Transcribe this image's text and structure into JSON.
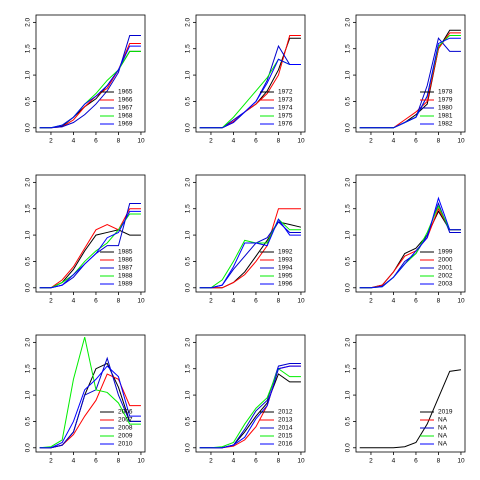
{
  "chart_data": [
    {
      "type": "line",
      "x": [
        1,
        2,
        3,
        4,
        5,
        6,
        7,
        8,
        9,
        10
      ],
      "xlim": [
        0.67,
        10.36
      ],
      "ylim": [
        -0.08,
        2.14
      ],
      "xticks": [
        2,
        4,
        6,
        8,
        10
      ],
      "yticks": [
        {
          "value": 0,
          "label": "0.0"
        },
        {
          "value": 0.5,
          "label": "0.5"
        },
        {
          "value": 1,
          "label": "1.0"
        },
        {
          "value": 1.5,
          "label": "1.5"
        },
        {
          "value": 2,
          "label": "2.0"
        }
      ],
      "legend": "bottom-right",
      "series": [
        {
          "name": "1965",
          "color": "#000000",
          "values": [
            0,
            0,
            0.03,
            0.2,
            0.4,
            0.55,
            0.8,
            1.1,
            1.45,
            1.45
          ]
        },
        {
          "name": "1966",
          "color": "#ff0000",
          "values": [
            0,
            0,
            0.02,
            0.15,
            0.4,
            0.6,
            0.75,
            1.1,
            1.6,
            1.6
          ]
        },
        {
          "name": "1967",
          "color": "#0000cd",
          "values": [
            0,
            0,
            0.02,
            0.1,
            0.25,
            0.45,
            0.7,
            1.05,
            1.75,
            1.75
          ]
        },
        {
          "name": "1968",
          "color": "#00ee00",
          "values": [
            0,
            0,
            0.05,
            0.2,
            0.45,
            0.65,
            0.9,
            1.1,
            1.45,
            1.45
          ]
        },
        {
          "name": "1969",
          "color": "#0000ff",
          "values": [
            0,
            0,
            0.05,
            0.2,
            0.45,
            0.6,
            0.8,
            1.1,
            1.55,
            1.55
          ]
        }
      ]
    },
    {
      "type": "line",
      "x": [
        1,
        2,
        3,
        4,
        5,
        6,
        7,
        8,
        9,
        10
      ],
      "xlim": [
        0.67,
        10.36
      ],
      "ylim": [
        -0.08,
        2.14
      ],
      "xticks": [
        2,
        4,
        6,
        8,
        10
      ],
      "yticks": [
        {
          "value": 0,
          "label": "0.0"
        },
        {
          "value": 0.5,
          "label": "0.5"
        },
        {
          "value": 1,
          "label": "1.0"
        },
        {
          "value": 1.5,
          "label": "1.5"
        },
        {
          "value": 2,
          "label": "2.0"
        }
      ],
      "legend": "bottom-right",
      "series": [
        {
          "name": "1972",
          "color": "#000000",
          "values": [
            0,
            0,
            0,
            0.1,
            0.3,
            0.45,
            0.7,
            1.1,
            1.7,
            1.7
          ]
        },
        {
          "name": "1973",
          "color": "#ff0000",
          "values": [
            0,
            0,
            0,
            0.12,
            0.3,
            0.45,
            0.65,
            1.0,
            1.75,
            1.75
          ]
        },
        {
          "name": "1974",
          "color": "#0000cd",
          "values": [
            0,
            0,
            0,
            0.15,
            0.3,
            0.5,
            0.9,
            1.55,
            1.2,
            1.2
          ]
        },
        {
          "name": "1975",
          "color": "#00ee00",
          "values": [
            0,
            0,
            0,
            0.2,
            0.45,
            0.7,
            0.95,
            1.3,
            1.2,
            1.2
          ]
        },
        {
          "name": "1976",
          "color": "#0000ff",
          "values": [
            0,
            0,
            0,
            0.1,
            0.3,
            0.5,
            0.85,
            1.3,
            1.2,
            1.2
          ]
        }
      ]
    },
    {
      "type": "line",
      "x": [
        1,
        2,
        3,
        4,
        5,
        6,
        7,
        8,
        9,
        10
      ],
      "xlim": [
        0.67,
        10.36
      ],
      "ylim": [
        -0.08,
        2.14
      ],
      "xticks": [
        2,
        4,
        6,
        8,
        10
      ],
      "yticks": [
        {
          "value": 0,
          "label": "0.0"
        },
        {
          "value": 0.5,
          "label": "0.5"
        },
        {
          "value": 1,
          "label": "1.0"
        },
        {
          "value": 1.5,
          "label": "1.5"
        },
        {
          "value": 2,
          "label": "2.0"
        }
      ],
      "legend": "bottom-right",
      "series": [
        {
          "name": "1978",
          "color": "#000000",
          "values": [
            0,
            0,
            0,
            0,
            0.1,
            0.25,
            0.45,
            1.5,
            1.85,
            1.85
          ]
        },
        {
          "name": "1979",
          "color": "#ff0000",
          "values": [
            0,
            0,
            0,
            0,
            0.15,
            0.3,
            0.5,
            1.5,
            1.8,
            1.8
          ]
        },
        {
          "name": "1980",
          "color": "#0000cd",
          "values": [
            0,
            0,
            0,
            0,
            0.1,
            0.2,
            0.8,
            1.7,
            1.45,
            1.45
          ]
        },
        {
          "name": "1981",
          "color": "#00ee00",
          "values": [
            0,
            0,
            0,
            0,
            0.1,
            0.2,
            0.6,
            1.55,
            1.75,
            1.75
          ]
        },
        {
          "name": "1982",
          "color": "#0000ff",
          "values": [
            0,
            0,
            0,
            0,
            0.1,
            0.2,
            0.6,
            1.6,
            1.7,
            1.7
          ]
        }
      ]
    },
    {
      "type": "line",
      "x": [
        1,
        2,
        3,
        4,
        5,
        6,
        7,
        8,
        9,
        10
      ],
      "xlim": [
        0.67,
        10.36
      ],
      "ylim": [
        -0.08,
        2.14
      ],
      "xticks": [
        2,
        4,
        6,
        8,
        10
      ],
      "yticks": [
        {
          "value": 0,
          "label": "0.0"
        },
        {
          "value": 0.5,
          "label": "0.5"
        },
        {
          "value": 1,
          "label": "1.0"
        },
        {
          "value": 1.5,
          "label": "1.5"
        },
        {
          "value": 2,
          "label": "2.0"
        }
      ],
      "legend": "bottom-right",
      "series": [
        {
          "name": "1985",
          "color": "#000000",
          "values": [
            0,
            0,
            0.1,
            0.35,
            0.7,
            1.0,
            1.05,
            1.1,
            1.0,
            1.0
          ]
        },
        {
          "name": "1986",
          "color": "#ff0000",
          "values": [
            0,
            0,
            0.15,
            0.4,
            0.75,
            1.1,
            1.2,
            1.1,
            1.5,
            1.5
          ]
        },
        {
          "name": "1987",
          "color": "#0000cd",
          "values": [
            0,
            0,
            0.05,
            0.2,
            0.45,
            0.65,
            0.8,
            0.8,
            1.6,
            1.6
          ]
        },
        {
          "name": "1988",
          "color": "#00ee00",
          "values": [
            0,
            0,
            0.1,
            0.25,
            0.5,
            0.7,
            0.85,
            1.1,
            1.4,
            1.4
          ]
        },
        {
          "name": "1989",
          "color": "#0000ff",
          "values": [
            0,
            0,
            0.05,
            0.25,
            0.45,
            0.65,
            0.95,
            1.05,
            1.45,
            1.45
          ]
        }
      ]
    },
    {
      "type": "line",
      "x": [
        1,
        2,
        3,
        4,
        5,
        6,
        7,
        8,
        9,
        10
      ],
      "xlim": [
        0.67,
        10.36
      ],
      "ylim": [
        -0.08,
        2.14
      ],
      "xticks": [
        2,
        4,
        6,
        8,
        10
      ],
      "yticks": [
        {
          "value": 0,
          "label": "0.0"
        },
        {
          "value": 0.5,
          "label": "0.5"
        },
        {
          "value": 1,
          "label": "1.0"
        },
        {
          "value": 1.5,
          "label": "1.5"
        },
        {
          "value": 2,
          "label": "2.0"
        }
      ],
      "legend": "bottom-right",
      "series": [
        {
          "name": "1992",
          "color": "#000000",
          "values": [
            0,
            0,
            0,
            0.1,
            0.3,
            0.6,
            0.9,
            1.25,
            1.2,
            1.15
          ]
        },
        {
          "name": "1993",
          "color": "#ff0000",
          "values": [
            0,
            0,
            0,
            0.1,
            0.25,
            0.5,
            0.8,
            1.5,
            1.5,
            1.5
          ]
        },
        {
          "name": "1994",
          "color": "#0000cd",
          "values": [
            0,
            0,
            0.05,
            0.35,
            0.6,
            0.85,
            0.95,
            1.25,
            1.05,
            1.05
          ]
        },
        {
          "name": "1995",
          "color": "#00ee00",
          "values": [
            0,
            0,
            0.15,
            0.5,
            0.9,
            0.85,
            0.85,
            1.3,
            1.1,
            1.1
          ]
        },
        {
          "name": "1996",
          "color": "#0000ff",
          "values": [
            0,
            0,
            0.05,
            0.4,
            0.85,
            0.85,
            0.8,
            1.3,
            1.0,
            1.0
          ]
        }
      ]
    },
    {
      "type": "line",
      "x": [
        1,
        2,
        3,
        4,
        5,
        6,
        7,
        8,
        9,
        10
      ],
      "xlim": [
        0.67,
        10.36
      ],
      "ylim": [
        -0.08,
        2.14
      ],
      "xticks": [
        2,
        4,
        6,
        8,
        10
      ],
      "yticks": [
        {
          "value": 0,
          "label": "0.0"
        },
        {
          "value": 0.5,
          "label": "0.5"
        },
        {
          "value": 1,
          "label": "1.0"
        },
        {
          "value": 1.5,
          "label": "1.5"
        },
        {
          "value": 2,
          "label": "2.0"
        }
      ],
      "legend": "bottom-right",
      "series": [
        {
          "name": "1999",
          "color": "#000000",
          "values": [
            0,
            0,
            0.05,
            0.3,
            0.65,
            0.75,
            1.0,
            1.45,
            1.1,
            1.1
          ]
        },
        {
          "name": "2000",
          "color": "#ff0000",
          "values": [
            0,
            0,
            0.05,
            0.3,
            0.6,
            0.7,
            0.95,
            1.5,
            1.1,
            1.1
          ]
        },
        {
          "name": "2001",
          "color": "#0000cd",
          "values": [
            0,
            0,
            0.03,
            0.2,
            0.5,
            0.65,
            1.0,
            1.6,
            1.05,
            1.05
          ]
        },
        {
          "name": "2002",
          "color": "#00ee00",
          "values": [
            0,
            0,
            0.02,
            0.2,
            0.45,
            0.65,
            1.05,
            1.55,
            1.1,
            1.1
          ]
        },
        {
          "name": "2003",
          "color": "#0000ff",
          "values": [
            0,
            0,
            0.02,
            0.2,
            0.45,
            0.7,
            0.95,
            1.7,
            1.1,
            1.1
          ]
        }
      ]
    },
    {
      "type": "line",
      "x": [
        1,
        2,
        3,
        4,
        5,
        6,
        7,
        8,
        9,
        10
      ],
      "xlim": [
        0.67,
        10.36
      ],
      "ylim": [
        -0.08,
        2.14
      ],
      "xticks": [
        2,
        4,
        6,
        8,
        10
      ],
      "yticks": [
        {
          "value": 0,
          "label": "0.0"
        },
        {
          "value": 0.5,
          "label": "0.5"
        },
        {
          "value": 1,
          "label": "1.0"
        },
        {
          "value": 1.5,
          "label": "1.5"
        },
        {
          "value": 2,
          "label": "2.0"
        }
      ],
      "legend": "bottom-right",
      "series": [
        {
          "name": "2006",
          "color": "#000000",
          "values": [
            0,
            0,
            0.05,
            0.3,
            1.0,
            1.5,
            1.6,
            1.15,
            0.5,
            0.5
          ]
        },
        {
          "name": "2007",
          "color": "#ff0000",
          "values": [
            0,
            0,
            0.05,
            0.25,
            0.6,
            0.9,
            1.4,
            1.3,
            0.8,
            0.8
          ]
        },
        {
          "name": "2008",
          "color": "#0000cd",
          "values": [
            0,
            0,
            0.05,
            0.3,
            1.0,
            1.1,
            1.7,
            1.0,
            0.5,
            0.5
          ]
        },
        {
          "name": "2009",
          "color": "#00ee00",
          "values": [
            0,
            0.02,
            0.15,
            1.3,
            2.1,
            1.1,
            1.05,
            0.85,
            0.45,
            0.45
          ]
        },
        {
          "name": "2010",
          "color": "#0000ff",
          "values": [
            0,
            0,
            0.1,
            0.5,
            1.1,
            1.3,
            1.55,
            1.35,
            0.6,
            0.6
          ]
        }
      ]
    },
    {
      "type": "line",
      "x": [
        1,
        2,
        3,
        4,
        5,
        6,
        7,
        8,
        9,
        10
      ],
      "xlim": [
        0.67,
        10.36
      ],
      "ylim": [
        -0.08,
        2.14
      ],
      "xticks": [
        2,
        4,
        6,
        8,
        10
      ],
      "yticks": [
        {
          "value": 0,
          "label": "0.0"
        },
        {
          "value": 0.5,
          "label": "0.5"
        },
        {
          "value": 1,
          "label": "1.0"
        },
        {
          "value": 1.5,
          "label": "1.5"
        },
        {
          "value": 2,
          "label": "2.0"
        }
      ],
      "legend": "bottom-right",
      "series": [
        {
          "name": "2012",
          "color": "#000000",
          "values": [
            0,
            0,
            0,
            0.05,
            0.3,
            0.6,
            0.85,
            1.4,
            1.25,
            1.25
          ]
        },
        {
          "name": "2013",
          "color": "#ff0000",
          "values": [
            0,
            0,
            0,
            0.03,
            0.15,
            0.4,
            0.8,
            1.5,
            1.55,
            1.55
          ]
        },
        {
          "name": "2014",
          "color": "#0000cd",
          "values": [
            0,
            0,
            0,
            0.05,
            0.35,
            0.7,
            0.9,
            1.55,
            1.6,
            1.6
          ]
        },
        {
          "name": "2015",
          "color": "#00ee00",
          "values": [
            0,
            0,
            0.02,
            0.1,
            0.45,
            0.75,
            0.95,
            1.5,
            1.35,
            1.35
          ]
        },
        {
          "name": "2016",
          "color": "#0000ff",
          "values": [
            0,
            0,
            0,
            0.05,
            0.2,
            0.55,
            0.8,
            1.5,
            1.55,
            1.55
          ]
        }
      ]
    },
    {
      "type": "line",
      "x": [
        1,
        2,
        3,
        4,
        5,
        6,
        7,
        8,
        9,
        10
      ],
      "xlim": [
        0.67,
        10.36
      ],
      "ylim": [
        -0.08,
        2.14
      ],
      "xticks": [
        2,
        4,
        6,
        8,
        10
      ],
      "yticks": [
        {
          "value": 0,
          "label": "0.0"
        },
        {
          "value": 0.5,
          "label": "0.5"
        },
        {
          "value": 1,
          "label": "1.0"
        },
        {
          "value": 1.5,
          "label": "1.5"
        },
        {
          "value": 2,
          "label": "2.0"
        }
      ],
      "legend": "bottom-right",
      "series": [
        {
          "name": "2019",
          "color": "#000000",
          "values": [
            0,
            0,
            0,
            0,
            0.02,
            0.1,
            0.45,
            0.95,
            1.45,
            1.48
          ]
        },
        {
          "name": "NA",
          "color": "#ff0000",
          "values": [
            null,
            null,
            null,
            null,
            null,
            null,
            null,
            null,
            null,
            null
          ]
        },
        {
          "name": "NA",
          "color": "#0000cd",
          "values": [
            null,
            null,
            null,
            null,
            null,
            null,
            null,
            null,
            null,
            null
          ]
        },
        {
          "name": "NA",
          "color": "#00ee00",
          "values": [
            null,
            null,
            null,
            null,
            null,
            null,
            null,
            null,
            null,
            null
          ]
        },
        {
          "name": "NA",
          "color": "#0000ff",
          "values": [
            null,
            null,
            null,
            null,
            null,
            null,
            null,
            null,
            null,
            null
          ]
        }
      ]
    }
  ]
}
